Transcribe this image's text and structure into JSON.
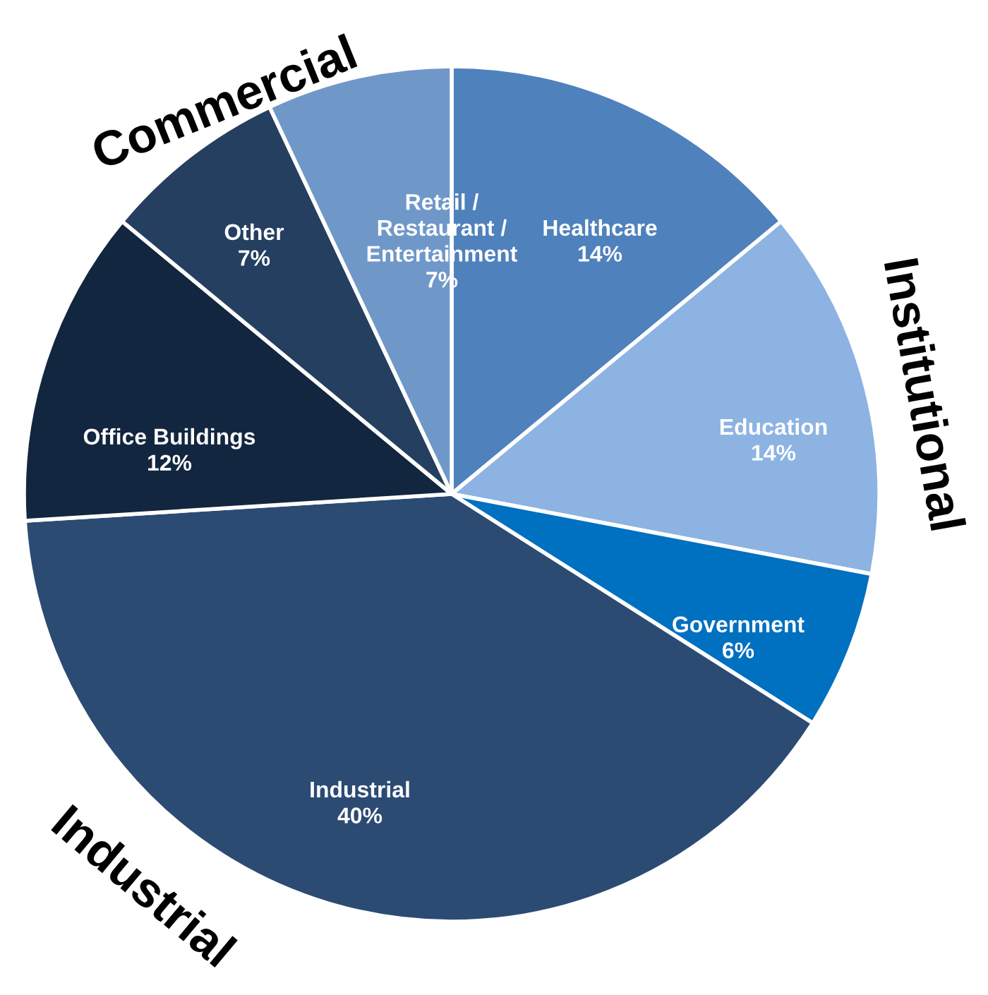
{
  "chart_data": {
    "type": "pie",
    "categories": [
      "Healthcare",
      "Education",
      "Government",
      "Industrial",
      "Office Buildings",
      "Other",
      "Retail /\nRestaurant /\nEntertainment"
    ],
    "values": [
      14,
      14,
      6,
      40,
      12,
      7,
      7
    ],
    "value_labels": [
      "14%",
      "14%",
      "6%",
      "40%",
      "12%",
      "7%",
      "7%"
    ],
    "colors": [
      "#4f81bd",
      "#8db3e2",
      "#0070c0",
      "#2c4b73",
      "#13263f",
      "#253f61",
      "#6f98c9"
    ],
    "annotations": [
      "Commercial",
      "Institutional",
      "Industrial"
    ]
  }
}
